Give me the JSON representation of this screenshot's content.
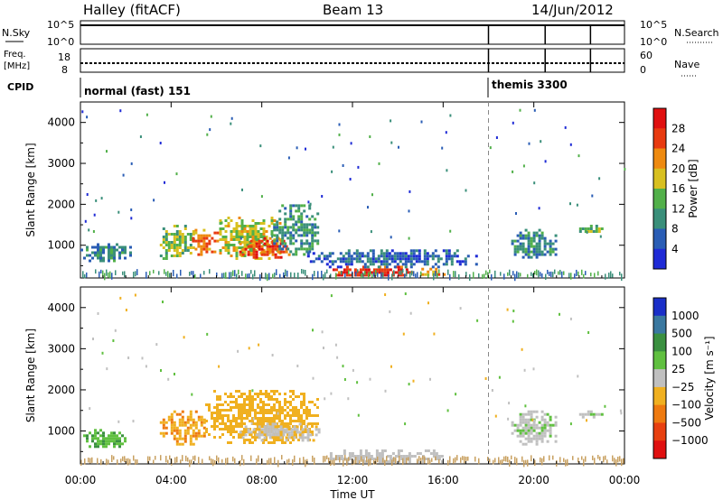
{
  "header": {
    "station": "Halley (fitACF)",
    "beam": "Beam 13",
    "date": "14/Jun/2012"
  },
  "top_panels": {
    "nsky": {
      "label": "N.Sky",
      "ticks": [
        "10^5",
        "10^0"
      ]
    },
    "nsearch": {
      "label": "N.Search",
      "ticks": [
        "10^5",
        "10^0"
      ]
    },
    "freq": {
      "label_line1": "Freq.",
      "label_line2": "[MHz]",
      "ticks": [
        "18",
        "8"
      ]
    },
    "nave": {
      "label": "Nave",
      "ticks": [
        "60",
        "0"
      ]
    },
    "cpid": {
      "label": "CPID",
      "modes": [
        {
          "name": "normal (fast) 151",
          "start_hour": 0
        },
        {
          "name": "themis 3300",
          "start_hour": 18
        }
      ]
    }
  },
  "chart_data": [
    {
      "type": "heatmap",
      "title": "",
      "xlabel": "Time UT",
      "ylabel": "Slant Range [km]",
      "xlim": [
        0,
        24
      ],
      "ylim": [
        200,
        4500
      ],
      "x_ticks": [
        "00:00",
        "04:00",
        "08:00",
        "12:00",
        "16:00",
        "20:00",
        "00:00"
      ],
      "y_ticks": [
        1000,
        2000,
        3000,
        4000
      ],
      "colorbar": {
        "label": "Power [dB]",
        "ticks": [
          "4",
          "8",
          "12",
          "16",
          "20",
          "24",
          "28"
        ],
        "colors": [
          "#1f2bd6",
          "#2a5db5",
          "#3a8f7a",
          "#52b04a",
          "#d8c020",
          "#ee8a10",
          "#e83a10",
          "#e01010"
        ],
        "range": [
          0,
          30
        ]
      },
      "echo_regions": [
        {
          "t0": 0.0,
          "t1": 2.2,
          "r0": 600,
          "r1": 1050,
          "value": 8
        },
        {
          "t0": 3.5,
          "t1": 5.0,
          "r0": 700,
          "r1": 1500,
          "value": 14
        },
        {
          "t0": 4.8,
          "t1": 6.0,
          "r0": 800,
          "r1": 1400,
          "value": 22
        },
        {
          "t0": 6.0,
          "t1": 8.8,
          "r0": 700,
          "r1": 1700,
          "value": 16
        },
        {
          "t0": 7.0,
          "t1": 9.2,
          "r0": 700,
          "r1": 1200,
          "value": 24
        },
        {
          "t0": 8.5,
          "t1": 10.5,
          "r0": 800,
          "r1": 2000,
          "value": 10
        },
        {
          "t0": 11.0,
          "t1": 14.8,
          "r0": 250,
          "r1": 500,
          "value": 26
        },
        {
          "t0": 14.8,
          "t1": 16.0,
          "r0": 250,
          "r1": 450,
          "value": 20
        },
        {
          "t0": 10.0,
          "t1": 17.5,
          "r0": 500,
          "r1": 900,
          "value": 6
        },
        {
          "t0": 19.0,
          "t1": 21.0,
          "r0": 700,
          "r1": 1400,
          "value": 9
        },
        {
          "t0": 22.0,
          "t1": 23.0,
          "r0": 1350,
          "r1": 1500,
          "value": 12
        }
      ]
    },
    {
      "type": "heatmap",
      "title": "",
      "xlabel": "Time UT",
      "ylabel": "Slant Range [km]",
      "xlim": [
        0,
        24
      ],
      "ylim": [
        200,
        4500
      ],
      "x_ticks": [
        "00:00",
        "04:00",
        "08:00",
        "12:00",
        "16:00",
        "20:00",
        "00:00"
      ],
      "y_ticks": [
        1000,
        2000,
        3000,
        4000
      ],
      "colorbar": {
        "label": "Velocity [m s⁻¹]",
        "ticks": [
          "1000",
          "500",
          "100",
          "25",
          "−25",
          "−100",
          "−500",
          "−1000"
        ],
        "colors": [
          "#1a2fc8",
          "#3a78a0",
          "#3a9040",
          "#60c040",
          "#c0c0c0",
          "#f0b020",
          "#ee7a10",
          "#e84010",
          "#e01010"
        ],
        "range": [
          -1000,
          1000
        ]
      },
      "echo_regions": [
        {
          "t0": 0.0,
          "t1": 2.0,
          "r0": 600,
          "r1": 1050,
          "value": 300
        },
        {
          "t0": 3.5,
          "t1": 5.5,
          "r0": 700,
          "r1": 1500,
          "value": -300
        },
        {
          "t0": 5.5,
          "t1": 10.5,
          "r0": 700,
          "r1": 2000,
          "value": -250
        },
        {
          "t0": 7.0,
          "t1": 10.5,
          "r0": 800,
          "r1": 1200,
          "value": -80
        },
        {
          "t0": 11.0,
          "t1": 16.0,
          "r0": 250,
          "r1": 550,
          "value": 0
        },
        {
          "t0": 19.0,
          "t1": 21.0,
          "r0": 700,
          "r1": 1500,
          "value": 60
        },
        {
          "t0": 22.0,
          "t1": 23.0,
          "r0": 1350,
          "r1": 1500,
          "value": 60
        }
      ]
    }
  ]
}
